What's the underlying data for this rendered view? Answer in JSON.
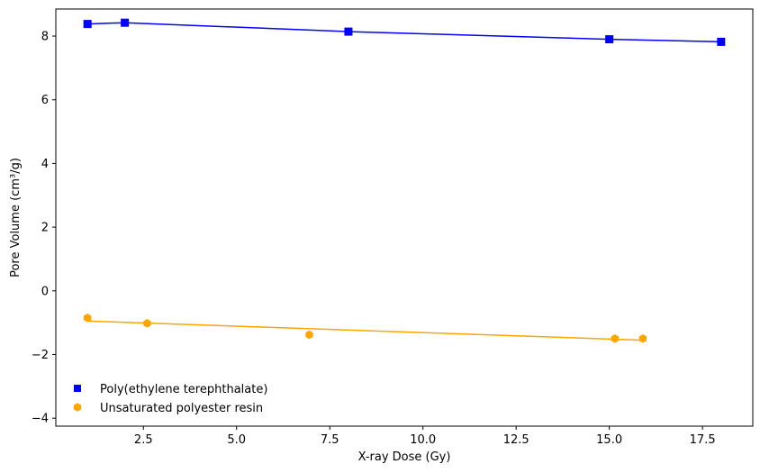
{
  "chart_data": {
    "type": "scatter",
    "title": "",
    "xlabel": "X-ray Dose (Gy)",
    "ylabel": "Pore Volume (cm³/g)",
    "xlim": [
      0.15,
      18.85
    ],
    "ylim": [
      -4.25,
      8.85
    ],
    "xticks": [
      2.5,
      5.0,
      7.5,
      10.0,
      12.5,
      15.0,
      17.5
    ],
    "xtick_labels": [
      "2.5",
      "5.0",
      "7.5",
      "10.0",
      "12.5",
      "15.0",
      "17.5"
    ],
    "yticks": [
      -4,
      -2,
      0,
      2,
      4,
      6,
      8
    ],
    "ytick_labels": [
      "−4",
      "−2",
      "0",
      "2",
      "4",
      "6",
      "8"
    ],
    "grid": false,
    "legend_position": "lower-left",
    "series": [
      {
        "name": "Poly(ethylene terephthalate)",
        "color": "#0000ff",
        "marker": "square",
        "x": [
          1,
          2,
          8,
          15,
          18
        ],
        "y": [
          8.38,
          8.42,
          8.14,
          7.9,
          7.82
        ],
        "fit_line": {
          "x": [
            1,
            2,
            8,
            15,
            18
          ],
          "y": [
            8.38,
            8.42,
            8.14,
            7.9,
            7.82
          ]
        }
      },
      {
        "name": "Unsaturated polyester resin",
        "color": "#ffa500",
        "marker": "hexagon",
        "x": [
          1.0,
          2.6,
          6.95,
          15.15,
          15.9
        ],
        "y": [
          -0.85,
          -1.02,
          -1.38,
          -1.5,
          -1.5
        ],
        "fit_line": {
          "x": [
            1.0,
            15.9
          ],
          "y": [
            -0.95,
            -1.55
          ]
        }
      }
    ]
  }
}
